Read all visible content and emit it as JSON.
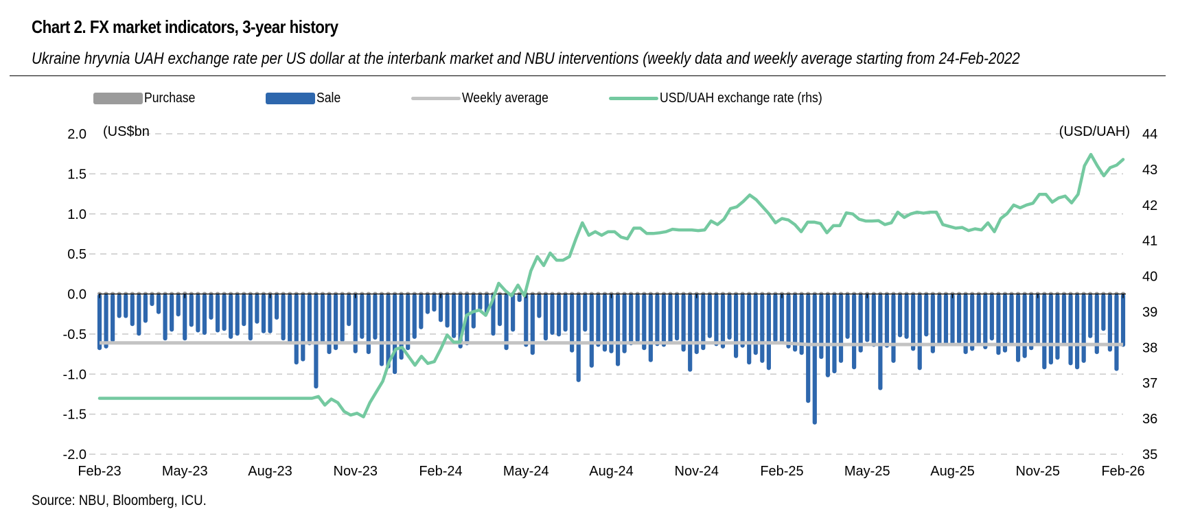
{
  "header": {
    "title": "Chart 2. FX market indicators, 3-year history",
    "subtitle": "Ukraine hryvnia UAH exchange rate per US dollar at the interbank market and NBU interventions (weekly data and weekly average starting from 24-Feb-2022"
  },
  "legend": [
    {
      "label": "Purchase",
      "type": "box",
      "color": "#9b9b9b"
    },
    {
      "label": "Sale",
      "type": "box",
      "color": "#2e67ad"
    },
    {
      "label": "Weekly average",
      "type": "line",
      "color": "#c3c3c3"
    },
    {
      "label": "USD/UAH exchange rate (rhs)",
      "type": "line",
      "color": "#74c9a0"
    }
  ],
  "footer": {
    "source": "Source: NBU, Bloomberg, ICU."
  },
  "chart_data": {
    "type": "bar",
    "title": "Chart 2. FX market indicators, 3-year history",
    "ylabel": "(US$bn",
    "y2label": "(USD/UAH)",
    "ylim": [
      -2.0,
      2.0
    ],
    "y2lim": [
      35,
      44
    ],
    "yticks": [
      "2.0",
      "1.5",
      "1.0",
      "0.5",
      "0.0",
      "-0.5",
      "-1.0",
      "-1.5",
      "-2.0"
    ],
    "y2ticks": [
      "44",
      "43",
      "42",
      "41",
      "40",
      "39",
      "38",
      "37",
      "36",
      "35"
    ],
    "xticks": [
      "Feb-23",
      "May-23",
      "Aug-23",
      "Nov-23",
      "Feb-24",
      "May-24",
      "Aug-24",
      "Nov-24",
      "Feb-25",
      "May-25",
      "Aug-25",
      "Nov-25",
      "Feb-26"
    ],
    "grid": true,
    "legend_position": "top",
    "series": [
      {
        "name": "Sale",
        "type": "bar",
        "color": "#2e67ad",
        "values": [
          -0.7,
          -0.68,
          -0.6,
          -0.3,
          -0.3,
          -0.4,
          -0.52,
          -0.36,
          -0.15,
          -0.25,
          -0.58,
          -0.47,
          -0.28,
          -0.58,
          -0.41,
          -0.48,
          -0.51,
          -0.32,
          -0.48,
          -0.46,
          -0.56,
          -0.52,
          -0.4,
          -0.58,
          -0.37,
          -0.49,
          -0.49,
          -0.32,
          -0.58,
          -0.63,
          -0.88,
          -0.84,
          -0.64,
          -1.18,
          -0.61,
          -0.75,
          -0.7,
          -0.6,
          -0.4,
          -0.74,
          -0.56,
          -0.75,
          -0.57,
          -0.9,
          -0.93,
          -1.0,
          -0.82,
          -0.7,
          -0.56,
          -0.44,
          -0.25,
          -0.22,
          -0.35,
          -0.42,
          -0.55,
          -0.68,
          -0.64,
          -0.43,
          -0.2,
          -0.24,
          -0.52,
          -0.4,
          -0.7,
          -0.47,
          -0.1,
          -0.66,
          -0.76,
          -0.3,
          -0.58,
          -0.51,
          -0.53,
          -0.47,
          -0.73,
          -1.1,
          -0.47,
          -0.92,
          -0.66,
          -0.72,
          -0.74,
          -0.9,
          -0.74,
          -0.64,
          -0.6,
          -0.7,
          -0.85,
          -0.65,
          -0.66,
          -0.62,
          -0.58,
          -0.72,
          -0.97,
          -0.75,
          -0.7,
          -0.55,
          -0.65,
          -0.68,
          -0.57,
          -0.8,
          -0.67,
          -0.88,
          -0.76,
          -0.86,
          -0.95,
          -0.6,
          -0.61,
          -0.68,
          -0.72,
          -0.76,
          -1.36,
          -1.63,
          -0.81,
          -1.04,
          -0.99,
          -0.86,
          -0.56,
          -0.94,
          -0.73,
          -0.6,
          -0.66,
          -1.2,
          -0.67,
          -0.86,
          -0.54,
          -0.56,
          -0.71,
          -0.95,
          -0.53,
          -0.74,
          -0.64,
          -0.64,
          -0.63,
          -0.62,
          -0.75,
          -0.71,
          -0.65,
          -0.69,
          -0.58,
          -0.76,
          -0.73,
          -0.65,
          -0.85,
          -0.8,
          -0.7,
          -0.65,
          -0.94,
          -0.88,
          -0.82,
          -0.65,
          -0.89,
          -0.94,
          -0.86,
          -0.55,
          -0.75,
          -0.46,
          -0.72,
          -0.96,
          -0.66
        ]
      },
      {
        "name": "Purchase",
        "type": "bar",
        "color": "#9b9b9b",
        "values": [
          0.01,
          0.01,
          0.0,
          0.0,
          0.0,
          0.0,
          0.0,
          0.0,
          0.0,
          0.0,
          0.0,
          0.0,
          0.02,
          0.03,
          0.02,
          0.01,
          0.02,
          0.02,
          0.02,
          0.02,
          0.02,
          0.0,
          0.0,
          0.0,
          0.0,
          0.0,
          0.0,
          0.0,
          0.0,
          0.0,
          0.0,
          0.0,
          0.02,
          0.0,
          0.0,
          0.0,
          0.0,
          0.0,
          0.0,
          0.0,
          0.0,
          0.0,
          0.0,
          0.0,
          0.0,
          0.0,
          0.0,
          0.0,
          0.0,
          0.0,
          0.02,
          0.0,
          0.0,
          0.0,
          0.0,
          0.03,
          0.03,
          0.0,
          0.0,
          0.03,
          0.0,
          0.0,
          0.0,
          0.0,
          0.0,
          0.0,
          0.0,
          0.03,
          0.0,
          0.0,
          0.0,
          0.0,
          0.0,
          0.0,
          0.0,
          0.0,
          0.0,
          0.0,
          0.0,
          0.0,
          0.0,
          0.0,
          0.0,
          0.0,
          0.0,
          0.0,
          0.0,
          0.0,
          0.0,
          0.0,
          0.0,
          0.0,
          0.0,
          0.0,
          0.0,
          0.0,
          0.0,
          0.0,
          0.0,
          0.0,
          0.0,
          0.0,
          0.0,
          0.0,
          0.0,
          0.0,
          0.0,
          0.0,
          0.0,
          0.0,
          0.0,
          0.0,
          0.0,
          0.0,
          0.0,
          0.0,
          0.0,
          0.0,
          0.0,
          0.0,
          0.0,
          0.0,
          0.0,
          0.0,
          0.0,
          0.0,
          0.0,
          0.0,
          0.0,
          0.0,
          0.0,
          0.0,
          0.0,
          0.0,
          0.0,
          0.0,
          0.0,
          0.0,
          0.0,
          0.0,
          0.0,
          0.0,
          0.0,
          0.0,
          0.0,
          0.0,
          0.0,
          0.0,
          0.0,
          0.0,
          0.0,
          0.0,
          0.0,
          0.0,
          0.0,
          0.0,
          0.0
        ]
      },
      {
        "name": "Weekly average",
        "type": "line",
        "color": "#c3c3c3",
        "points": [
          [
            0,
            -0.61
          ],
          [
            104,
            -0.61
          ],
          [
            108,
            -0.63
          ],
          [
            156,
            -0.63
          ]
        ]
      },
      {
        "name": "USD/UAH exchange rate (rhs)",
        "type": "line",
        "axis": "right",
        "color": "#74c9a0",
        "points": [
          [
            0,
            36.57
          ],
          [
            33,
            36.57
          ],
          [
            34,
            36.62
          ],
          [
            35,
            36.38
          ],
          [
            36,
            36.55
          ],
          [
            37,
            36.45
          ],
          [
            38,
            36.2
          ],
          [
            39,
            36.1
          ],
          [
            40,
            36.15
          ],
          [
            41,
            36.05
          ],
          [
            42,
            36.45
          ],
          [
            43,
            36.75
          ],
          [
            44,
            37.05
          ],
          [
            45,
            37.6
          ],
          [
            46,
            37.95
          ],
          [
            47,
            38.0
          ],
          [
            48,
            37.75
          ],
          [
            49,
            37.5
          ],
          [
            50,
            37.75
          ],
          [
            51,
            37.55
          ],
          [
            52,
            37.6
          ],
          [
            53,
            37.95
          ],
          [
            54,
            38.35
          ],
          [
            55,
            38.15
          ],
          [
            56,
            38.15
          ],
          [
            57,
            38.9
          ],
          [
            58,
            39.0
          ],
          [
            59,
            39.05
          ],
          [
            60,
            38.9
          ],
          [
            61,
            39.3
          ],
          [
            62,
            39.8
          ],
          [
            63,
            39.6
          ],
          [
            64,
            39.45
          ],
          [
            65,
            39.75
          ],
          [
            66,
            39.45
          ],
          [
            67,
            40.15
          ],
          [
            68,
            40.55
          ],
          [
            69,
            40.3
          ],
          [
            70,
            40.65
          ],
          [
            71,
            40.45
          ],
          [
            72,
            40.45
          ],
          [
            73,
            40.55
          ],
          [
            74,
            41.05
          ],
          [
            75,
            41.5
          ],
          [
            76,
            41.15
          ],
          [
            77,
            41.25
          ],
          [
            78,
            41.15
          ],
          [
            79,
            41.25
          ],
          [
            80,
            41.25
          ],
          [
            81,
            41.1
          ],
          [
            82,
            41.05
          ],
          [
            83,
            41.35
          ],
          [
            84,
            41.35
          ],
          [
            85,
            41.2
          ],
          [
            86,
            41.2
          ],
          [
            87,
            41.22
          ],
          [
            88,
            41.25
          ],
          [
            89,
            41.32
          ],
          [
            90,
            41.3
          ],
          [
            91,
            41.3
          ],
          [
            92,
            41.3
          ],
          [
            93,
            41.28
          ],
          [
            94,
            41.3
          ],
          [
            95,
            41.55
          ],
          [
            96,
            41.45
          ],
          [
            97,
            41.6
          ],
          [
            98,
            41.9
          ],
          [
            99,
            41.95
          ],
          [
            100,
            42.1
          ],
          [
            101,
            42.28
          ],
          [
            102,
            42.15
          ],
          [
            103,
            41.95
          ],
          [
            104,
            41.75
          ],
          [
            105,
            41.5
          ],
          [
            106,
            41.62
          ],
          [
            107,
            41.58
          ],
          [
            108,
            41.45
          ],
          [
            109,
            41.25
          ],
          [
            110,
            41.52
          ],
          [
            111,
            41.52
          ],
          [
            112,
            41.48
          ],
          [
            113,
            41.22
          ],
          [
            114,
            41.42
          ],
          [
            115,
            41.42
          ],
          [
            116,
            41.78
          ],
          [
            117,
            41.75
          ],
          [
            118,
            41.6
          ],
          [
            119,
            41.55
          ],
          [
            120,
            41.55
          ],
          [
            121,
            41.56
          ],
          [
            122,
            41.45
          ],
          [
            123,
            41.5
          ],
          [
            124,
            41.8
          ],
          [
            125,
            41.65
          ],
          [
            126,
            41.75
          ],
          [
            127,
            41.8
          ],
          [
            128,
            41.77
          ],
          [
            129,
            41.8
          ],
          [
            130,
            41.8
          ],
          [
            131,
            41.45
          ],
          [
            132,
            41.4
          ],
          [
            133,
            41.35
          ],
          [
            134,
            41.37
          ],
          [
            135,
            41.28
          ],
          [
            136,
            41.33
          ],
          [
            137,
            41.3
          ],
          [
            138,
            41.5
          ],
          [
            139,
            41.25
          ],
          [
            140,
            41.62
          ],
          [
            141,
            41.76
          ],
          [
            142,
            42.0
          ],
          [
            143,
            41.92
          ],
          [
            144,
            42.0
          ],
          [
            145,
            42.05
          ],
          [
            146,
            42.3
          ],
          [
            147,
            42.3
          ],
          [
            148,
            42.08
          ],
          [
            149,
            42.2
          ],
          [
            150,
            42.25
          ],
          [
            151,
            42.06
          ],
          [
            152,
            42.3
          ],
          [
            153,
            43.1
          ],
          [
            154,
            43.42
          ],
          [
            155,
            43.1
          ],
          [
            156,
            42.82
          ],
          [
            157,
            43.05
          ],
          [
            158,
            43.12
          ],
          [
            159,
            43.28
          ]
        ]
      }
    ]
  }
}
